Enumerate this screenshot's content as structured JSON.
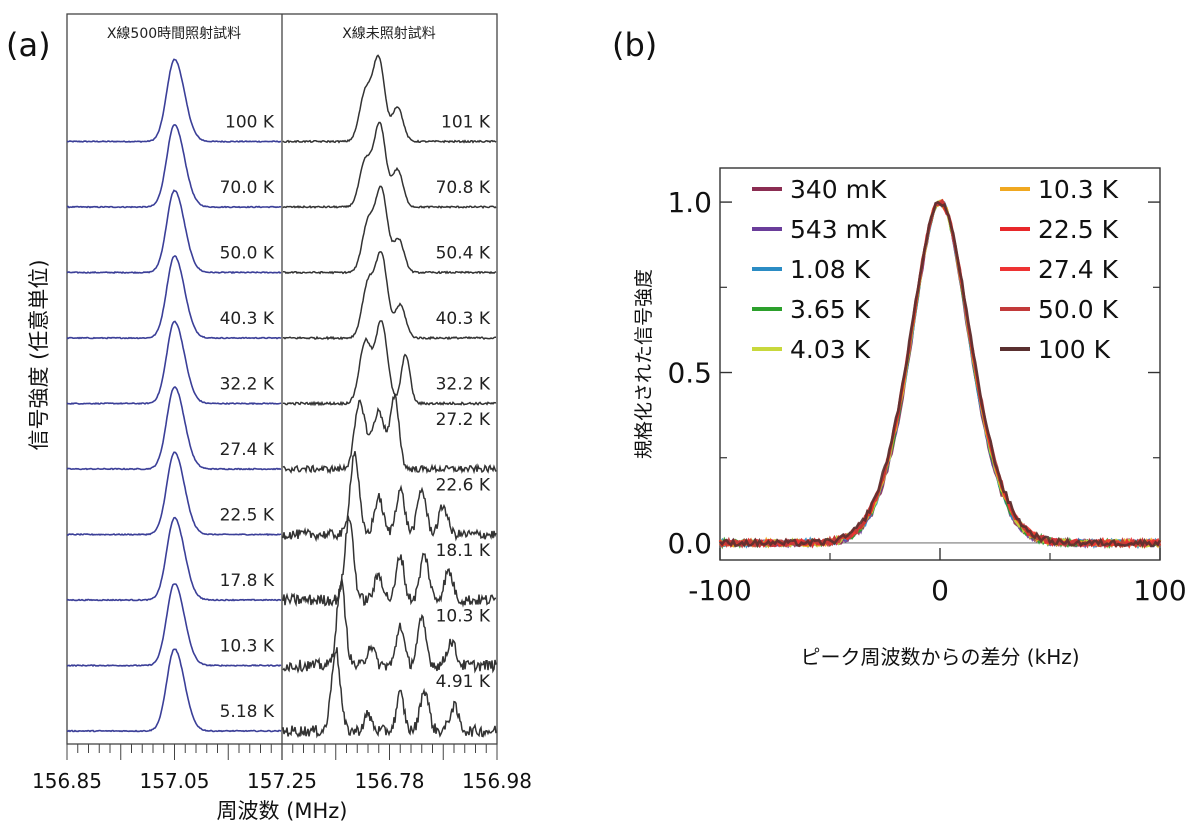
{
  "figure": {
    "panel_a_label": "(a)",
    "panel_b_label": "(b)"
  },
  "chart_data": [
    {
      "type": "line",
      "panel": "(a)",
      "column_titles": [
        "X線500時間照射試料",
        "X線未照射試料"
      ],
      "xlabel": "周波数 (MHz)",
      "ylabel": "信号強度 (任意単位)",
      "x_tick_labels": [
        "156.85",
        "157.05",
        "157.25",
        "156.78",
        "156.98"
      ],
      "left_series": [
        {
          "name": "100 K"
        },
        {
          "name": "70.0 K"
        },
        {
          "name": "50.0 K"
        },
        {
          "name": "40.3 K"
        },
        {
          "name": "32.2 K"
        },
        {
          "name": "27.4 K"
        },
        {
          "name": "22.5 K"
        },
        {
          "name": "17.8 K"
        },
        {
          "name": "10.3 K"
        },
        {
          "name": "5.18 K"
        }
      ],
      "right_series": [
        {
          "name": "101 K"
        },
        {
          "name": "70.8 K"
        },
        {
          "name": "50.4 K"
        },
        {
          "name": "40.3 K"
        },
        {
          "name": "32.2 K"
        },
        {
          "name": "27.2 K"
        },
        {
          "name": "22.6 K"
        },
        {
          "name": "18.1 K"
        },
        {
          "name": "10.3 K"
        },
        {
          "name": "4.91 K"
        }
      ],
      "left_color": "#3b3f98",
      "right_color": "#333333",
      "left_peak": {
        "center": 157.05,
        "width": 0.016
      },
      "right_peaks": [
        {
          "peaks": [
            [
              156.735,
              0.58,
              0.011
            ],
            [
              156.76,
              1.0,
              0.011
            ],
            [
              156.795,
              0.42,
              0.01
            ]
          ],
          "noise": 0.01
        },
        {
          "peaks": [
            [
              156.735,
              0.55,
              0.011
            ],
            [
              156.762,
              1.0,
              0.011
            ],
            [
              156.795,
              0.45,
              0.01
            ]
          ],
          "noise": 0.01
        },
        {
          "peaks": [
            [
              156.74,
              0.6,
              0.011
            ],
            [
              156.765,
              1.0,
              0.011
            ],
            [
              156.797,
              0.4,
              0.01
            ]
          ],
          "noise": 0.01
        },
        {
          "peaks": [
            [
              156.74,
              0.65,
              0.011
            ],
            [
              156.765,
              1.0,
              0.011
            ],
            [
              156.8,
              0.4,
              0.01
            ]
          ],
          "noise": 0.012
        },
        {
          "peaks": [
            [
              156.735,
              0.75,
              0.011
            ],
            [
              156.765,
              1.0,
              0.011
            ],
            [
              156.81,
              0.6,
              0.008
            ]
          ],
          "noise": 0.015
        },
        {
          "peaks": [
            [
              156.725,
              0.8,
              0.01
            ],
            [
              156.76,
              0.7,
              0.012
            ],
            [
              156.79,
              0.85,
              0.008
            ]
          ],
          "noise": 0.04
        },
        {
          "peaks": [
            [
              156.715,
              1.0,
              0.008
            ],
            [
              156.76,
              0.45,
              0.008
            ],
            [
              156.8,
              0.55,
              0.008
            ],
            [
              156.84,
              0.55,
              0.008
            ],
            [
              156.88,
              0.35,
              0.008
            ]
          ],
          "noise": 0.06
        },
        {
          "peaks": [
            [
              156.705,
              1.0,
              0.008
            ],
            [
              156.76,
              0.3,
              0.008
            ],
            [
              156.8,
              0.55,
              0.007
            ],
            [
              156.845,
              0.55,
              0.008
            ],
            [
              156.89,
              0.35,
              0.008
            ]
          ],
          "noise": 0.07
        },
        {
          "peaks": [
            [
              156.69,
              1.0,
              0.008
            ],
            [
              156.745,
              0.25,
              0.007
            ],
            [
              156.8,
              0.5,
              0.007
            ],
            [
              156.84,
              0.55,
              0.008
            ],
            [
              156.895,
              0.3,
              0.008
            ]
          ],
          "noise": 0.07
        },
        {
          "peaks": [
            [
              156.68,
              1.0,
              0.008
            ],
            [
              156.74,
              0.2,
              0.007
            ],
            [
              156.8,
              0.45,
              0.007
            ],
            [
              156.845,
              0.5,
              0.008
            ],
            [
              156.9,
              0.3,
              0.008
            ]
          ],
          "noise": 0.07
        }
      ]
    },
    {
      "type": "line",
      "panel": "(b)",
      "xlabel": "ピーク周波数からの差分 (kHz)",
      "ylabel": "規格化された信号強度",
      "xlim": [
        -100,
        100
      ],
      "ylim": [
        -0.05,
        1.1
      ],
      "x_ticks": [
        -100,
        0,
        100
      ],
      "y_ticks": [
        0.0,
        0.5,
        1.0
      ],
      "x_tick_labels": [
        "-100",
        "0",
        "100"
      ],
      "y_tick_labels": [
        "0.0",
        "0.5",
        "1.0"
      ],
      "legend_position": "top",
      "peak_center": 0,
      "peak_fwhm": 36,
      "series": [
        {
          "name": "340 mK",
          "color": "#8b2d52"
        },
        {
          "name": "543 mK",
          "color": "#6a3d9a"
        },
        {
          "name": "1.08 K",
          "color": "#2b8cc4"
        },
        {
          "name": "3.65 K",
          "color": "#2ca02c"
        },
        {
          "name": "4.03 K",
          "color": "#c8d83c"
        },
        {
          "name": "10.3 K",
          "color": "#f0a820"
        },
        {
          "name": "22.5 K",
          "color": "#e8282a"
        },
        {
          "name": "27.4 K",
          "color": "#ee3333"
        },
        {
          "name": "50.0 K",
          "color": "#c23a3a"
        },
        {
          "name": "100 K",
          "color": "#5a3030"
        }
      ]
    }
  ]
}
